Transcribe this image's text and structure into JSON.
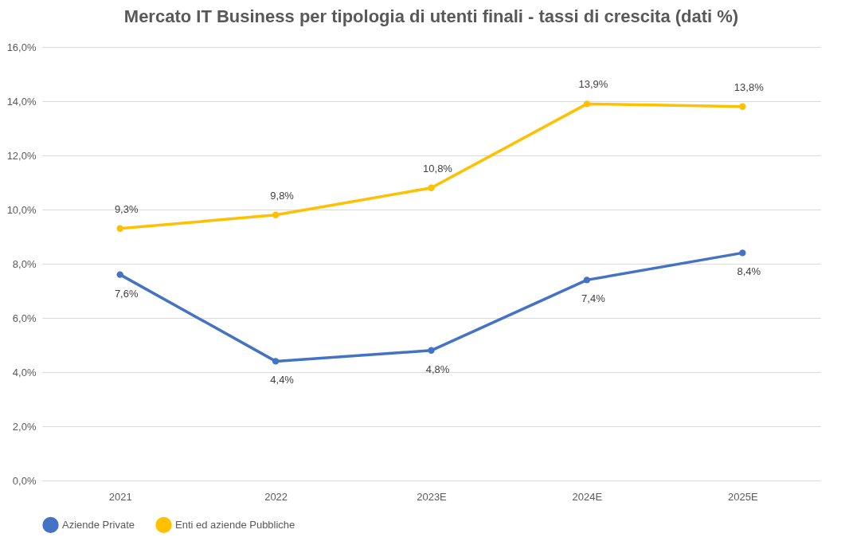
{
  "chart_data": {
    "type": "line",
    "title": "Mercato IT Business per tipologia di utenti finali - tassi di crescita (dati %)",
    "categories": [
      "2021",
      "2022",
      "2023E",
      "2024E",
      "2025E"
    ],
    "series": [
      {
        "name": "Aziende Private",
        "color": "#4472c4",
        "values": [
          7.6,
          4.4,
          4.8,
          7.4,
          8.4
        ],
        "value_labels": [
          "7,6%",
          "4,4%",
          "4,8%",
          "7,4%",
          "8,4%"
        ]
      },
      {
        "name": "Enti ed aziende Pubbliche",
        "color": "#ffc000",
        "values": [
          9.3,
          9.8,
          10.8,
          13.9,
          13.8
        ],
        "value_labels": [
          "9,3%",
          "9,8%",
          "10,8%",
          "13,9%",
          "13,8%"
        ]
      }
    ],
    "ylim": [
      0,
      16
    ],
    "yticks": [
      {
        "value": 0,
        "label": "0,0%"
      },
      {
        "value": 2,
        "label": "2,0%"
      },
      {
        "value": 4,
        "label": "4,0%"
      },
      {
        "value": 6,
        "label": "6,0%"
      },
      {
        "value": 8,
        "label": "8,0%"
      },
      {
        "value": 10,
        "label": "10,0%"
      },
      {
        "value": 12,
        "label": "12,0%"
      },
      {
        "value": 14,
        "label": "14,0%"
      },
      {
        "value": 16,
        "label": "16,0%"
      }
    ],
    "grid": "y",
    "legend": "bottom",
    "marker": "circle",
    "line_style": "solid"
  }
}
